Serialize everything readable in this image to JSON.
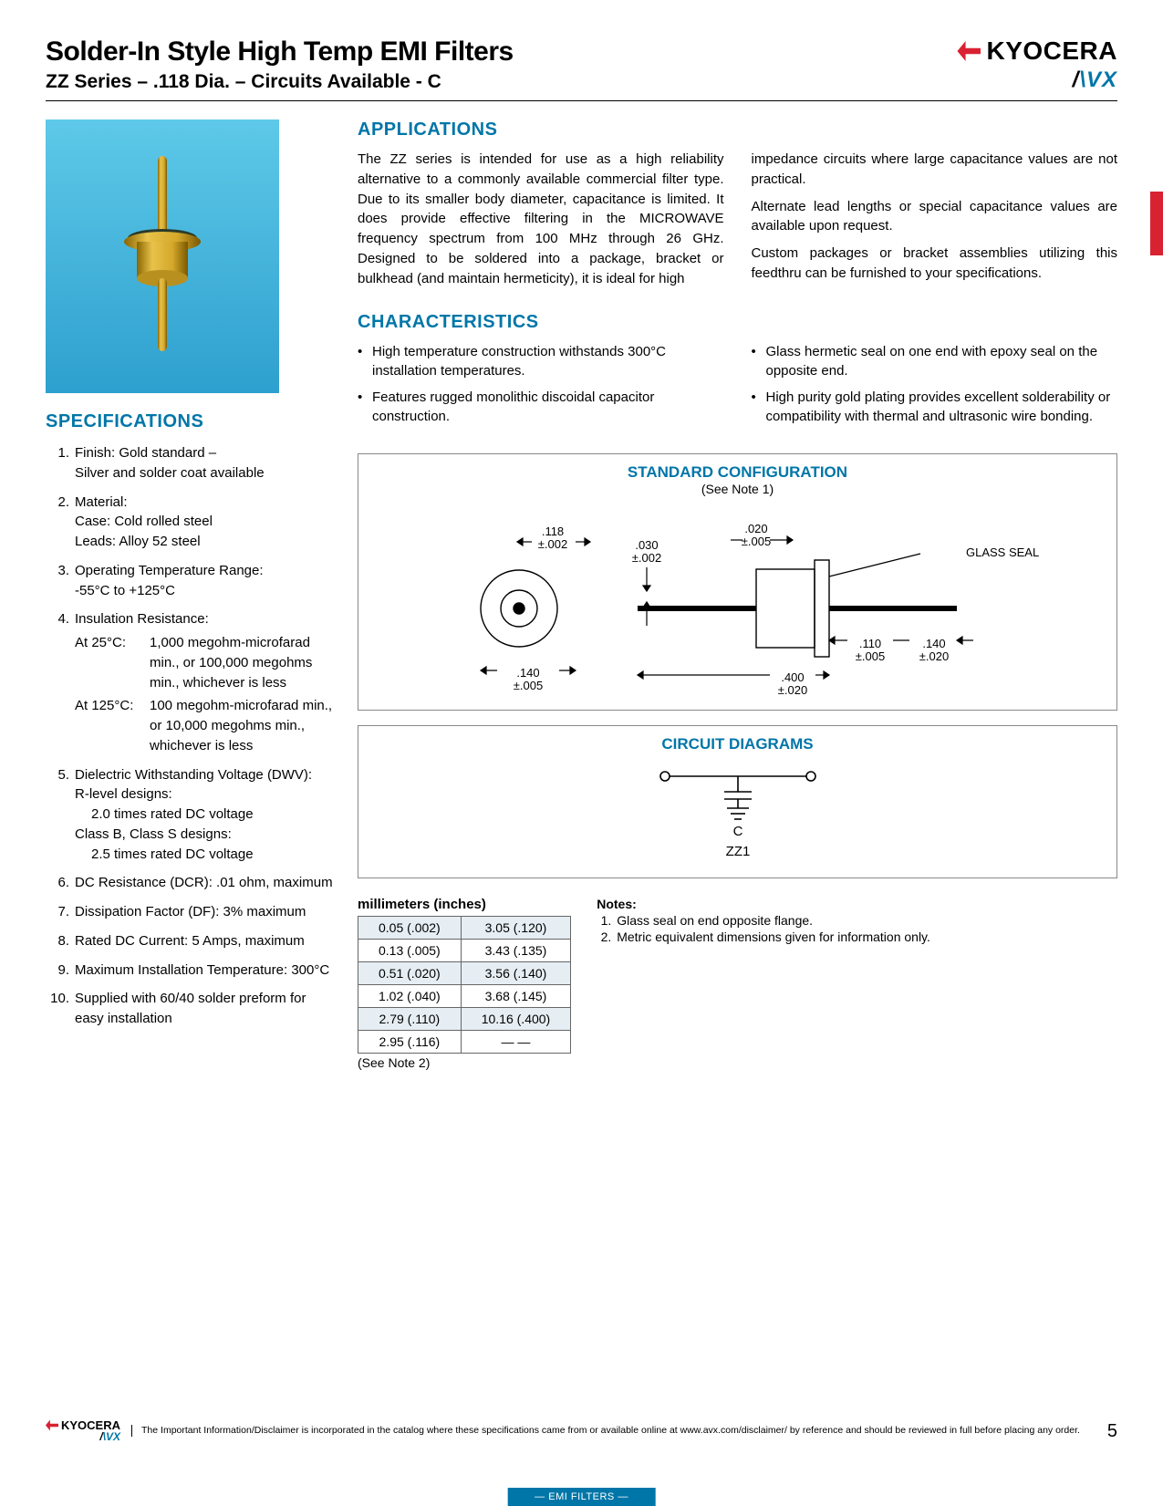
{
  "header": {
    "title": "Solder-In Style High Temp EMI Filters",
    "subtitle": "ZZ Series – .118 Dia. – Circuits Available - C",
    "brand1": "KYOCERA",
    "brand2_pre": "/",
    "brand2": "VX",
    "brand2_full": "AVX"
  },
  "applications": {
    "heading": "APPLICATIONS",
    "col1": "The ZZ series is intended for use as a high reliability alternative to a commonly available commercial filter type. Due to its smaller body diameter, capacitance is limited. It does provide effective filtering in the MICROWAVE frequency spectrum from 100 MHz through 26 GHz. Designed to be soldered into a package, bracket or bulkhead (and maintain hermeticity), it is ideal for high",
    "col2a": "impedance circuits where large capacitance values are not practical.",
    "col2b": "Alternate lead lengths or special capacitance values are available upon request.",
    "col2c": "Custom packages or bracket assemblies utilizing this feedthru can be furnished to your specifications."
  },
  "characteristics": {
    "heading": "CHARACTERISTICS",
    "left": [
      "High temperature construction withstands 300°C installation temperatures.",
      "Features rugged monolithic discoidal capacitor construction."
    ],
    "right": [
      "Glass hermetic seal on one end with epoxy seal on the opposite end.",
      "High purity gold plating provides excellent solderability or compatibility with thermal and ultrasonic wire bonding."
    ]
  },
  "specifications": {
    "heading": "SPECIFICATIONS",
    "items": [
      {
        "main": " Finish: Gold standard –",
        "extra": "Silver and solder coat available"
      },
      {
        "main": "Material:",
        "extra_lines": [
          "Case: Cold rolled steel",
          "Leads: Alloy 52 steel"
        ]
      },
      {
        "main": "Operating Temperature Range:",
        "extra": "-55°C to +125°C"
      },
      {
        "main": "Insulation Resistance:",
        "rows": [
          {
            "lbl": "At 25°C:",
            "txt": "1,000 megohm-microfarad min., or 100,000 megohms min., whichever is less"
          },
          {
            "lbl": "At 125°C:",
            "txt": "100 megohm-microfarad min., or 10,000 megohms min., whichever is less"
          }
        ]
      },
      {
        "main": "Dielectric Withstanding Voltage (DWV):",
        "dwv": [
          {
            "h": "R-level designs:",
            "t": "2.0 times rated DC voltage"
          },
          {
            "h": "Class B, Class S designs:",
            "t": "2.5 times rated DC voltage"
          }
        ]
      },
      {
        "main": " DC Resistance (DCR): .01 ohm, maximum"
      },
      {
        "main": "Dissipation Factor (DF): 3% maximum"
      },
      {
        "main": "Rated DC Current: 5 Amps, maximum"
      },
      {
        "main": "Maximum Installation Temperature: 300°C"
      },
      {
        "main": "Supplied with 60/40 solder preform for easy installation"
      }
    ]
  },
  "standard_config": {
    "heading": "STANDARD CONFIGURATION",
    "see": "(See Note 1)",
    "labels": {
      "d118": ".118",
      "t002": "±.002",
      "d030": ".030",
      "t002b": "±.002",
      "d020": ".020",
      "t005": "±.005",
      "glass": "GLASS SEAL",
      "d140": ".140",
      "t005b": "±.005",
      "d400": ".400",
      "t020": "±.020",
      "d110": ".110",
      "t005c": "±.005",
      "d140r": ".140",
      "t020r": "±.020"
    }
  },
  "circuit": {
    "heading": "CIRCUIT DIAGRAMS",
    "label_c": "C",
    "label_zz": "ZZ1"
  },
  "mm_table": {
    "caption": "millimeters (inches)",
    "rows": [
      [
        "0.05 (.002)",
        "3.05 (.120)"
      ],
      [
        "0.13 (.005)",
        "3.43 (.135)"
      ],
      [
        "0.51 (.020)",
        "3.56 (.140)"
      ],
      [
        "1.02 (.040)",
        "3.68 (.145)"
      ],
      [
        "2.79 (.110)",
        "10.16 (.400)"
      ],
      [
        "2.95 (.116)",
        "—  —"
      ]
    ],
    "see": "(See Note 2)"
  },
  "notes": {
    "heading": "Notes:",
    "items": [
      "Glass seal on end opposite flange.",
      "Metric equivalent dimensions given for information only."
    ]
  },
  "footer": {
    "text": "The Important Information/Disclaimer is incorporated in the catalog where these specifications came from or available online at www.avx.com/disclaimer/ by reference and should be reviewed in full before placing any order.",
    "page": "5",
    "bottom": "— EMI FILTERS —"
  },
  "colors": {
    "accent": "#0076a8",
    "red": "#d92231"
  }
}
